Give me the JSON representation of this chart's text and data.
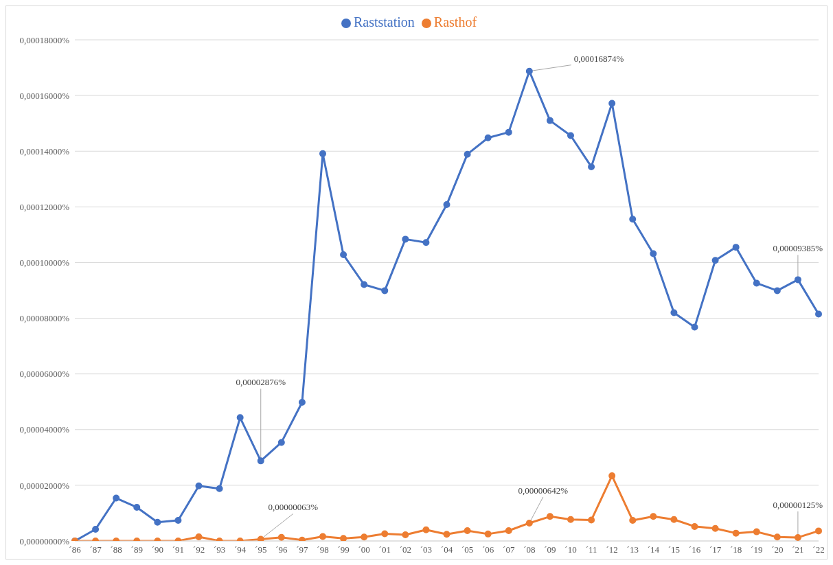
{
  "chart_data": {
    "type": "line",
    "categories": [
      "´86",
      "´87",
      "´88",
      "´89",
      "´90",
      "´91",
      "´92",
      "´93",
      "´94",
      "´95",
      "´96",
      "´97",
      "´98",
      "´99",
      "´00",
      "´01",
      "´02",
      "´03",
      "´04",
      "´05",
      "´06",
      "´07",
      "´08",
      "´09",
      "´10",
      "´11",
      "´12",
      "´13",
      "´14",
      "´15",
      "´16",
      "´17",
      "´18",
      "´19",
      "´20",
      "´21",
      "´22"
    ],
    "series": [
      {
        "name": "Raststation",
        "color": "#4472c4",
        "values": [
          0,
          4.2e-06,
          1.54e-05,
          1.21e-05,
          6.7e-06,
          7.4e-06,
          1.98e-05,
          1.88e-05,
          4.43e-05,
          2.876e-05,
          3.54e-05,
          4.98e-05,
          0.0001391,
          0.0001028,
          9.21e-05,
          8.99e-05,
          0.0001084,
          0.0001072,
          0.0001208,
          0.0001389,
          0.0001448,
          0.0001468,
          0.00016874,
          0.000151,
          0.0001456,
          0.0001344,
          0.0001572,
          0.0001156,
          0.0001032,
          8.2e-05,
          7.68e-05,
          0.0001008,
          0.0001055,
          9.26e-05,
          8.99e-05,
          9.385e-05,
          8.15e-05
        ]
      },
      {
        "name": "Rasthof",
        "color": "#ed7d31",
        "values": [
          0,
          0,
          0,
          0,
          0,
          0,
          1.5e-06,
          0,
          0,
          6.3e-07,
          1.3e-06,
          3e-07,
          1.6e-06,
          9e-07,
          1.4e-06,
          2.6e-06,
          2.2e-06,
          4e-06,
          2.4e-06,
          3.7e-06,
          2.5e-06,
          3.7e-06,
          6.42e-06,
          8.8e-06,
          7.7e-06,
          7.5e-06,
          2.34e-05,
          7.4e-06,
          8.8e-06,
          7.7e-06,
          5.2e-06,
          4.5e-06,
          2.8e-06,
          3.3e-06,
          1.4e-06,
          1.25e-06,
          3.6e-06
        ]
      }
    ],
    "ylim": [
      0,
      0.00018
    ],
    "yticks": [
      {
        "value": 0,
        "label": "0,00000000%"
      },
      {
        "value": 2e-05,
        "label": "0,00002000%"
      },
      {
        "value": 4e-05,
        "label": "0,00004000%"
      },
      {
        "value": 6e-05,
        "label": "0,00006000%"
      },
      {
        "value": 8e-05,
        "label": "0,00008000%"
      },
      {
        "value": 0.0001,
        "label": "0,00010000%"
      },
      {
        "value": 0.00012,
        "label": "0,00012000%"
      },
      {
        "value": 0.00014,
        "label": "0,00014000%"
      },
      {
        "value": 0.00016,
        "label": "0,00016000%"
      },
      {
        "value": 0.00018,
        "label": "0,00018000%"
      }
    ],
    "grid": "y",
    "legend": "top",
    "marker": "circle",
    "line_style": "solid",
    "annotations": [
      {
        "text": "0,00002876%",
        "x": "´95",
        "y": 2.876e-05
      },
      {
        "text": "0,00016874%",
        "x": "´08",
        "y": 0.00016874
      },
      {
        "text": "0,00009385%",
        "x": "´21",
        "y": 9.385e-05
      },
      {
        "text": "0,00000063%",
        "x": "´95",
        "y": 6.3e-07
      },
      {
        "text": "0,00000642%",
        "x": "´08",
        "y": 6.42e-06
      },
      {
        "text": "0,00000125%",
        "x": "´21",
        "y": 1.25e-06
      }
    ]
  }
}
